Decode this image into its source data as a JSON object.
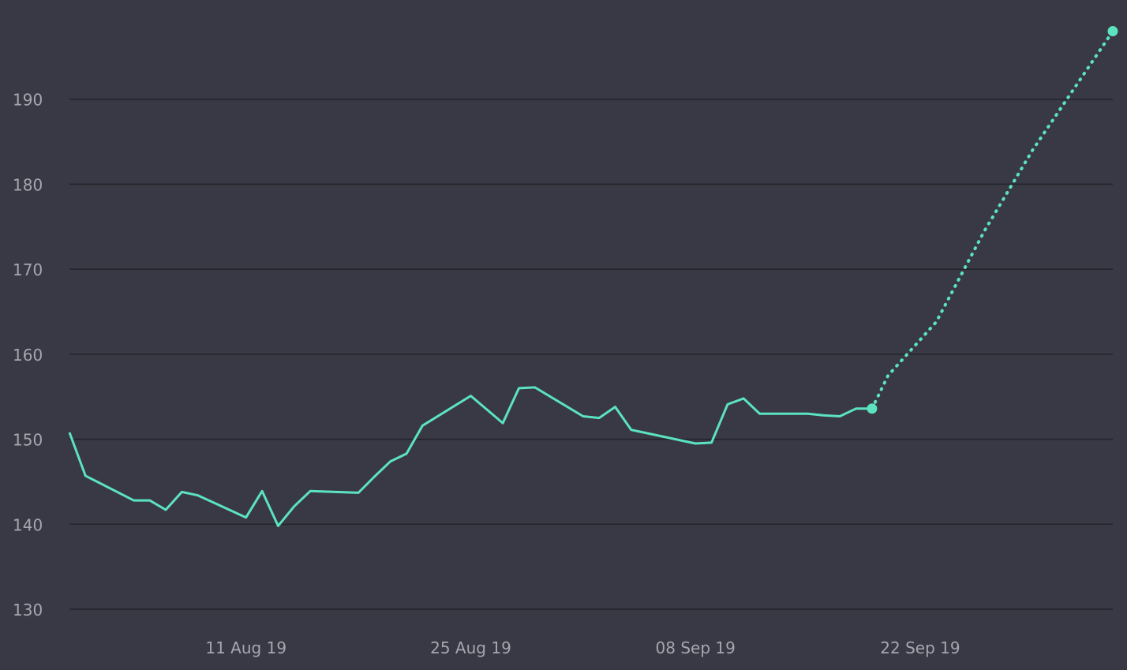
{
  "chart_data": {
    "type": "line",
    "title": "",
    "xlabel": "",
    "ylabel": "",
    "ylim": [
      130,
      200
    ],
    "y_ticks": [
      "130",
      "140",
      "150",
      "160",
      "170",
      "180",
      "190"
    ],
    "x_ticks": [
      {
        "label": "11 Aug 19",
        "date": "2019-08-11"
      },
      {
        "label": "25 Aug 19",
        "date": "2019-08-25"
      },
      {
        "label": "08 Sep 19",
        "date": "2019-09-08"
      },
      {
        "label": "22 Sep 19",
        "date": "2019-09-22"
      }
    ],
    "xlim": [
      "2019-07-31",
      "2019-10-04"
    ],
    "grid": true,
    "line_color": "#5ce3c0",
    "grid_color": "#23232b",
    "background": "#393945",
    "series": [
      {
        "style": "solid",
        "x": [
          "2019-07-31",
          "2019-08-01",
          "2019-08-04",
          "2019-08-05",
          "2019-08-06",
          "2019-08-07",
          "2019-08-08",
          "2019-08-11",
          "2019-08-12",
          "2019-08-13",
          "2019-08-14",
          "2019-08-15",
          "2019-08-18",
          "2019-08-19",
          "2019-08-20",
          "2019-08-21",
          "2019-08-22",
          "2019-08-25",
          "2019-08-26",
          "2019-08-27",
          "2019-08-28",
          "2019-08-29",
          "2019-09-01",
          "2019-09-02",
          "2019-09-03",
          "2019-09-04",
          "2019-09-05",
          "2019-09-08",
          "2019-09-09",
          "2019-09-10",
          "2019-09-11",
          "2019-09-12",
          "2019-09-15",
          "2019-09-16",
          "2019-09-17",
          "2019-09-18",
          "2019-09-19"
        ],
        "y": [
          150.8,
          145.7,
          142.8,
          142.8,
          141.7,
          143.8,
          143.4,
          140.8,
          143.9,
          139.8,
          142.1,
          143.9,
          143.7,
          145.6,
          147.4,
          148.3,
          151.6,
          155.1,
          153.5,
          151.9,
          156.0,
          156.1,
          152.7,
          152.5,
          153.8,
          151.1,
          150.7,
          149.5,
          149.6,
          154.1,
          154.8,
          153.0,
          153.0,
          152.8,
          152.7,
          153.6,
          153.6
        ],
        "values_estimated": true
      },
      {
        "style": "dotted",
        "x": [
          "2019-09-19",
          "2019-09-20",
          "2019-09-23",
          "2019-09-26",
          "2019-09-29",
          "2019-10-04"
        ],
        "y": [
          153.6,
          157.5,
          163.8,
          174.5,
          184.0,
          198.0
        ],
        "values_estimated": true
      }
    ]
  }
}
